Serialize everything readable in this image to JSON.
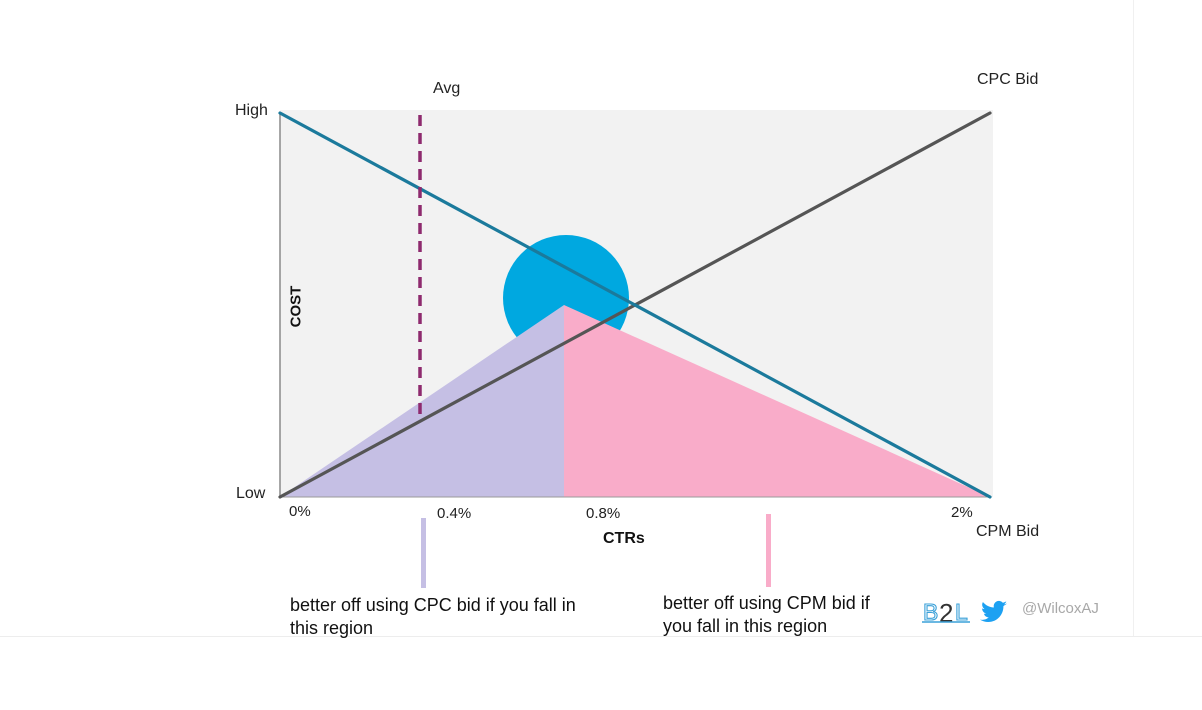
{
  "chart_data": {
    "type": "line",
    "title": "",
    "xlabel": "CTRs",
    "ylabel": "COST",
    "x_ticks": [
      "0%",
      "0.4%",
      "0.8%",
      "2%"
    ],
    "y_ticks": [
      "Low",
      "High"
    ],
    "xlim": [
      0,
      2
    ],
    "ylim": [
      0,
      1
    ],
    "series": [
      {
        "name": "CPC Bid",
        "color": "#555555",
        "x": [
          0,
          2
        ],
        "y": [
          0,
          1
        ]
      },
      {
        "name": "CPM Bid",
        "color": "#1b7a9c",
        "x": [
          0,
          2
        ],
        "y": [
          1,
          0
        ]
      }
    ],
    "reference_line": {
      "label": "Avg",
      "x": 0.4,
      "color": "#8e2a6e",
      "style": "dashed"
    },
    "intersection": {
      "x": 0.8,
      "y": 0.5,
      "color": "#00a8e0"
    },
    "regions": [
      {
        "name": "cpc-region",
        "color": "#c5bfe4",
        "note": "better off using CPC bid if you fall in this region"
      },
      {
        "name": "cpm-region",
        "color": "#f9acc9",
        "note": "better off using CPM bid if you fall in this region"
      }
    ],
    "grid": false,
    "background": "#f2f2f2"
  },
  "notes": {
    "cpc": "better off using CPC bid if you fall in this region",
    "cpm": "better off using CPM bid if you fall in this region"
  },
  "brand": {
    "logo_text": "B2L",
    "twitter_icon": "twitter-bird-icon",
    "handle": "@WilcoxAJ"
  }
}
